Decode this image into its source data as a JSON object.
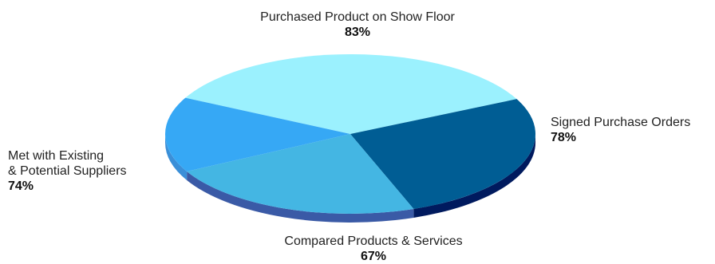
{
  "chart_data": {
    "type": "pie",
    "style": "3d",
    "slices": [
      {
        "label": "Purchased Product on Show Floor",
        "value": 83,
        "value_label": "83%",
        "color": "#9bf1fe",
        "side_color": "#6fd0e2"
      },
      {
        "label": "Signed Purchase Orders",
        "value": 78,
        "value_label": "78%",
        "color": "#005d94",
        "side_color": "#001a5e"
      },
      {
        "label": "Compared Products & Services",
        "value": 67,
        "value_label": "67%",
        "color": "#44b6e3",
        "side_color": "#3a5aa6"
      },
      {
        "label": "Met with Existing\n& Potential Suppliers",
        "value": 74,
        "value_label": "74%",
        "color": "#36a8f5",
        "side_color": "#3a8fd8"
      }
    ]
  },
  "labels": {
    "top": {
      "name": "Purchased Product on Show Floor",
      "pct": "83%"
    },
    "right": {
      "name": "Signed Purchase Orders",
      "pct": "78%"
    },
    "bottom": {
      "name": "Compared Products & Services",
      "pct": "67%"
    },
    "left": {
      "name": "Met with Existing\n& Potential Suppliers",
      "pct": "74%"
    }
  }
}
